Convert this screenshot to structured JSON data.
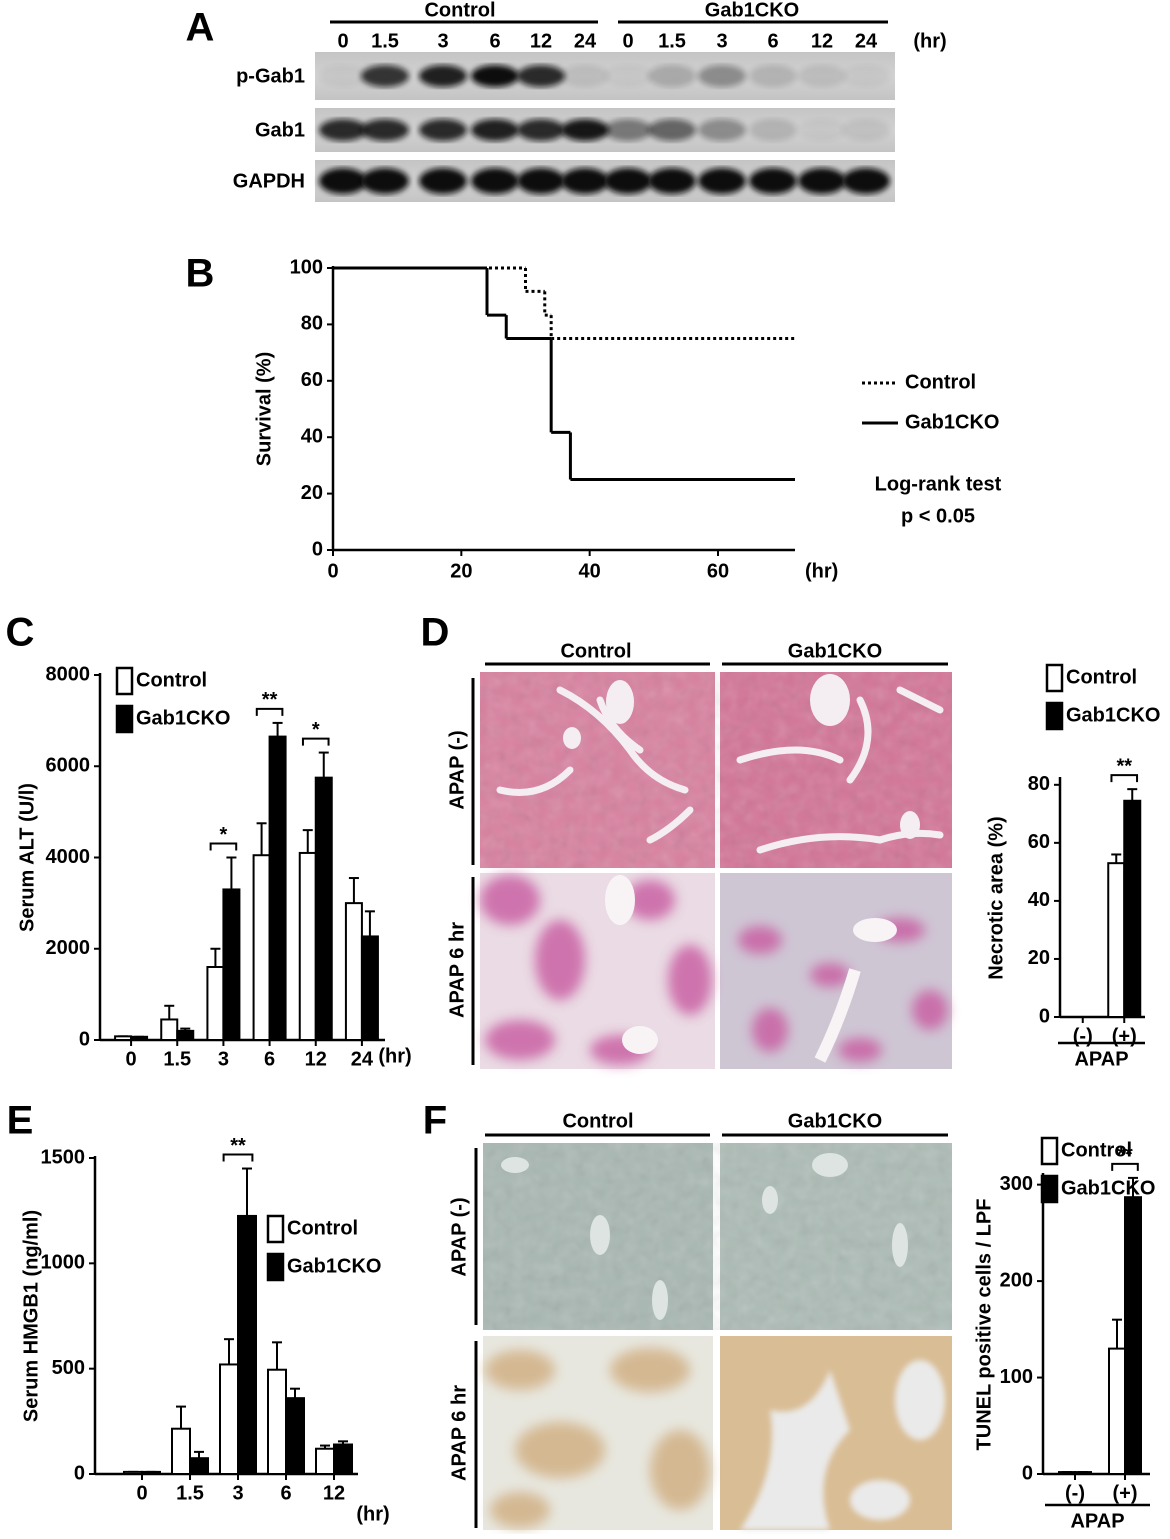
{
  "panel_letters": [
    "A",
    "B",
    "C",
    "D",
    "E",
    "F"
  ],
  "blot": {
    "groups": [
      "Control",
      "Gab1CKO"
    ],
    "times": [
      "0",
      "1.5",
      "3",
      "6",
      "12",
      "24",
      "0",
      "1.5",
      "3",
      "6",
      "12",
      "24"
    ],
    "time_unit": "(hr)",
    "rows": [
      "p-Gab1",
      "Gab1",
      "GAPDH"
    ]
  },
  "histology_D": {
    "columns": [
      "Control",
      "Gab1CKO"
    ],
    "rows": [
      "APAP (-)",
      "APAP  6 hr"
    ]
  },
  "histology_F": {
    "columns": [
      "Control",
      "Gab1CKO"
    ],
    "rows": [
      "APAP (-)",
      "APAP 6 hr"
    ]
  },
  "chart_data": [
    {
      "type": "line",
      "step": true,
      "ylabel": "Survival (%)",
      "x_unit": "(hr)",
      "xlim": [
        0,
        72
      ],
      "ylim": [
        0,
        100
      ],
      "xticks": [
        0,
        20,
        40,
        60
      ],
      "yticks": [
        0,
        20,
        40,
        60,
        80,
        100
      ],
      "legend": "right",
      "series": [
        {
          "name": "Control",
          "color": "#000000",
          "dash": "dotted",
          "x": [
            0,
            30,
            33,
            34
          ],
          "values": [
            100,
            91.7,
            83.3,
            75
          ]
        },
        {
          "name": "Gab1CKO",
          "color": "#000000",
          "dash": "solid",
          "x": [
            0,
            24,
            27,
            34,
            37
          ],
          "values": [
            100,
            83.3,
            75,
            41.7,
            25
          ]
        }
      ],
      "annotations": [
        "Log-rank test",
        "p < 0.05"
      ]
    },
    {
      "type": "bar",
      "ylabel": "Serum ALT (U/l)",
      "x_unit": "(hr)",
      "categories": [
        "0",
        "1.5",
        "3",
        "6",
        "12",
        "24"
      ],
      "ylim": [
        0,
        8000
      ],
      "yticks": [
        0,
        2000,
        4000,
        6000,
        8000
      ],
      "legend": "upper left",
      "series": [
        {
          "name": "Control",
          "color": "#ffffff",
          "values": [
            80,
            450,
            1600,
            4050,
            4100,
            3000
          ],
          "errors": [
            0,
            300,
            400,
            700,
            500,
            550
          ]
        },
        {
          "name": "Gab1CKO",
          "color": "#000000",
          "values": [
            70,
            200,
            3300,
            6650,
            5750,
            2270
          ],
          "errors": [
            0,
            50,
            700,
            300,
            550,
            550
          ]
        }
      ],
      "significance": [
        null,
        null,
        "*",
        "**",
        "*",
        null
      ]
    },
    {
      "type": "bar",
      "ylabel": "Necrotic area (%)",
      "group_label": "APAP",
      "categories": [
        "(-)",
        "(+)"
      ],
      "ylim": [
        0,
        82
      ],
      "yticks": [
        0,
        20,
        40,
        60,
        80
      ],
      "legend": "top",
      "series": [
        {
          "name": "Control",
          "color": "#ffffff",
          "values": [
            0,
            53
          ],
          "errors": [
            0,
            3
          ]
        },
        {
          "name": "Gab1CKO",
          "color": "#000000",
          "values": [
            0,
            74.5
          ],
          "errors": [
            0,
            4
          ]
        }
      ],
      "significance": [
        null,
        "**"
      ]
    },
    {
      "type": "bar",
      "ylabel": "Serum HMGB1 (ng/ml)",
      "x_unit": "(hr)",
      "categories": [
        "0",
        "1.5",
        "3",
        "6",
        "12"
      ],
      "ylim": [
        0,
        1500
      ],
      "yticks": [
        0,
        500,
        1000,
        1500
      ],
      "legend": "right",
      "series": [
        {
          "name": "Control",
          "color": "#ffffff",
          "values": [
            10,
            215,
            520,
            495,
            120
          ],
          "errors": [
            0,
            105,
            120,
            130,
            15
          ]
        },
        {
          "name": "Gab1CKO",
          "color": "#000000",
          "values": [
            10,
            75,
            1225,
            360,
            140
          ],
          "errors": [
            0,
            30,
            225,
            45,
            15
          ]
        }
      ],
      "significance": [
        null,
        null,
        "**",
        null,
        null
      ]
    },
    {
      "type": "bar",
      "ylabel": "TUNEL positive cells / LPF",
      "group_label": "APAP",
      "categories": [
        "(-)",
        "(+)"
      ],
      "ylim": [
        0,
        310
      ],
      "yticks": [
        0,
        100,
        200,
        300
      ],
      "legend": "top",
      "series": [
        {
          "name": "Control",
          "color": "#ffffff",
          "values": [
            2,
            130
          ],
          "errors": [
            0,
            30
          ]
        },
        {
          "name": "Gab1CKO",
          "color": "#000000",
          "values": [
            2,
            287
          ],
          "errors": [
            0,
            20
          ]
        }
      ],
      "significance": [
        null,
        "**"
      ]
    }
  ]
}
